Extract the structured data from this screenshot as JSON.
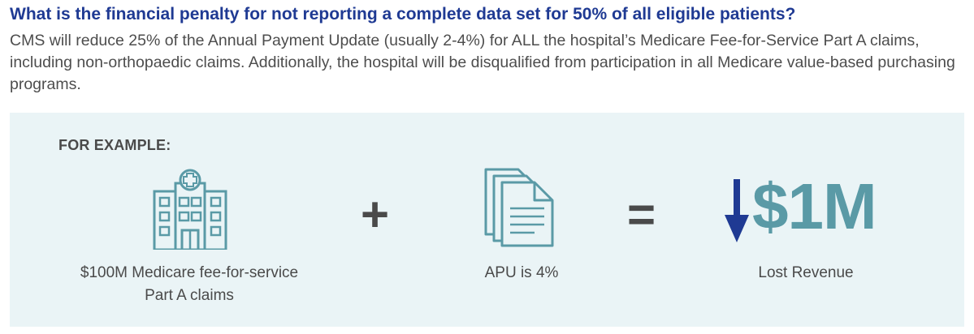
{
  "question": "What is the financial penalty for not reporting a complete data set for 50% of all eligible patients?",
  "answer": "CMS will reduce 25% of the Annual Payment Update (usually 2-4%) for ALL the hospital’s Medicare Fee-for-Service Part A claims, including non-orthopaedic claims. Additionally, the hospital will be disqualified from participation in all Medicare value-based purchasing programs.",
  "example": {
    "label": "FOR EXAMPLE:",
    "plus": "+",
    "equals": "=",
    "claims_caption": "$100M  Medicare fee-for-service Part A claims",
    "apu_caption": "APU is 4%",
    "amount": "$1M",
    "result_caption": "Lost Revenue"
  },
  "colors": {
    "heading": "#1f3a93",
    "body_text": "#4d4d4d",
    "panel_background": "#eaf4f6",
    "icon_teal": "#5a9aa6",
    "arrow_navy": "#1f3a93"
  },
  "icons": {
    "hospital": "hospital-building-icon",
    "documents": "document-stack-icon",
    "arrow": "arrow-down-icon"
  }
}
